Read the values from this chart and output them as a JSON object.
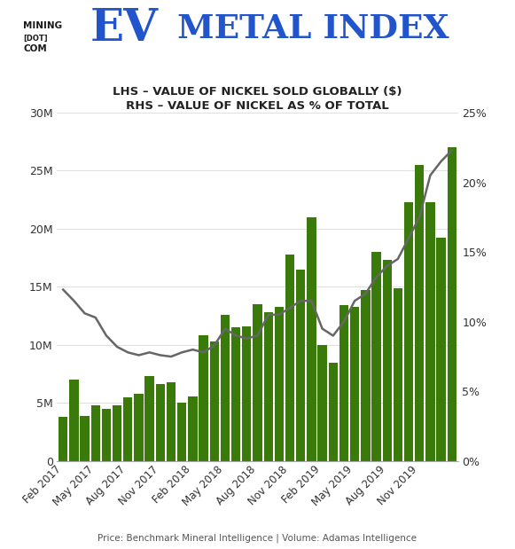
{
  "bar_values": [
    3.8,
    7.0,
    3.9,
    4.8,
    4.5,
    4.8,
    5.5,
    5.8,
    7.3,
    6.6,
    6.8,
    5.0,
    5.6,
    10.8,
    10.3,
    12.6,
    11.5,
    11.6,
    13.5,
    12.8,
    13.3,
    17.8,
    16.5,
    21.0,
    10.0,
    8.5,
    13.4,
    13.3,
    14.7,
    18.0,
    17.3,
    14.9,
    22.3,
    25.5,
    22.3,
    19.2,
    27.0
  ],
  "line_values": [
    12.3,
    11.5,
    10.6,
    10.3,
    9.0,
    8.2,
    7.8,
    7.6,
    7.8,
    7.6,
    7.5,
    7.8,
    8.0,
    7.8,
    8.3,
    9.5,
    9.0,
    8.8,
    9.0,
    10.5,
    10.5,
    11.0,
    11.5,
    11.5,
    9.5,
    9.0,
    10.0,
    11.5,
    12.0,
    13.2,
    14.0,
    14.5,
    16.0,
    17.5,
    20.5,
    21.5,
    22.3
  ],
  "tick_positions": [
    0,
    3,
    6,
    9,
    12,
    15,
    18,
    21,
    24,
    27,
    30,
    33,
    36
  ],
  "tick_labels": [
    "Feb 2017",
    "May 2017",
    "Aug 2017",
    "Nov 2017",
    "Feb 2018",
    "May 2018",
    "Aug 2018",
    "Nov 2018",
    "Feb 2019",
    "May 2019",
    "Aug 2019",
    "Nov 2019",
    ""
  ],
  "bar_color": "#3a7a0a",
  "line_color": "#666666",
  "background_color": "#ffffff",
  "grid_color": "#e0e0e0",
  "yticks_left_labels": [
    "0",
    "5M",
    "10M",
    "15M",
    "20M",
    "25M",
    "30M"
  ],
  "yticks_right_labels": [
    "0%",
    "5%",
    "10%",
    "15%",
    "20%",
    "25%"
  ],
  "subtitle_line1": "LHS – VALUE OF NICKEL SOLD GLOBALLY ($)",
  "subtitle_line2": "RHS – VALUE OF NICKEL AS % OF TOTAL",
  "footer": "Price: Benchmark Mineral Intelligence | Volume: Adamas Intelligence",
  "header_mining": "MINING\n[DOT]COM",
  "header_ev": "EV",
  "header_rest": "METAL INDEX",
  "header_color_dark": "#1a1a1a",
  "header_color_blue": "#2255cc",
  "header_bg_color": "#ffffff"
}
